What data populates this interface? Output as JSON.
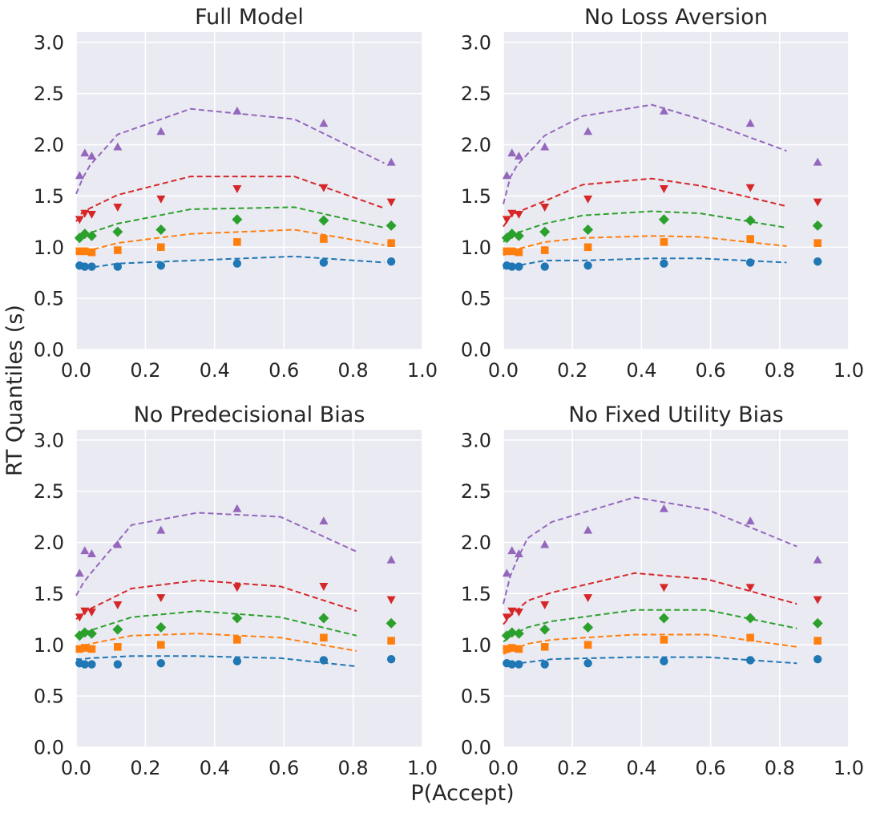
{
  "figure": {
    "ylabel": "RT Quantiles (s)",
    "xlabel": "P(Accept)",
    "colors": {
      "background": "#eaeaf2",
      "grid": "#ffffff",
      "q1": "#1f77b4",
      "q2": "#ff7f0e",
      "q3": "#2ca02c",
      "q4": "#d62728",
      "q5": "#9467bd"
    },
    "markers": [
      "circle",
      "square",
      "diamond",
      "triangle-down",
      "triangle-up"
    ]
  },
  "chart_data": [
    {
      "type": "scatter",
      "title": "Full Model",
      "xlim": [
        0,
        1
      ],
      "ylim": [
        0,
        3.1
      ],
      "xticks": [
        "0.0",
        "0.2",
        "0.4",
        "0.6",
        "0.8",
        "1.0"
      ],
      "yticks": [
        "0.0",
        "0.5",
        "1.0",
        "1.5",
        "2.0",
        "2.5",
        "3.0"
      ],
      "grid": true,
      "observed": {
        "x": [
          0.01,
          0.025,
          0.045,
          0.12,
          0.245,
          0.465,
          0.715,
          0.91
        ],
        "series": [
          [
            0.82,
            0.81,
            0.81,
            0.81,
            0.82,
            0.84,
            0.85,
            0.86
          ],
          [
            0.96,
            0.96,
            0.95,
            0.97,
            1.0,
            1.05,
            1.08,
            1.04
          ],
          [
            1.09,
            1.13,
            1.11,
            1.15,
            1.17,
            1.27,
            1.26,
            1.21
          ],
          [
            1.27,
            1.33,
            1.32,
            1.39,
            1.47,
            1.57,
            1.58,
            1.44
          ],
          [
            1.7,
            1.92,
            1.89,
            1.98,
            2.13,
            2.33,
            2.21,
            1.83
          ]
        ]
      },
      "predicted": {
        "x": [
          0.0,
          0.02,
          0.04,
          0.12,
          0.33,
          0.63,
          0.89
        ],
        "series": [
          [
            0.8,
            0.8,
            0.8,
            0.84,
            0.87,
            0.91,
            0.85
          ],
          [
            0.94,
            0.96,
            0.97,
            1.04,
            1.13,
            1.17,
            1.02
          ],
          [
            1.07,
            1.13,
            1.14,
            1.23,
            1.37,
            1.39,
            1.19
          ],
          [
            1.25,
            1.35,
            1.38,
            1.51,
            1.69,
            1.69,
            1.38
          ],
          [
            1.52,
            1.68,
            1.8,
            2.1,
            2.35,
            2.25,
            1.82
          ]
        ]
      }
    },
    {
      "type": "scatter",
      "title": "No Loss Aversion",
      "xlim": [
        0,
        1
      ],
      "ylim": [
        0,
        3.1
      ],
      "xticks": [
        "0.0",
        "0.2",
        "0.4",
        "0.6",
        "0.8",
        "1.0"
      ],
      "yticks": [
        "0.0",
        "0.5",
        "1.0",
        "1.5",
        "2.0",
        "2.5",
        "3.0"
      ],
      "grid": true,
      "observed": {
        "x": [
          0.01,
          0.025,
          0.045,
          0.12,
          0.245,
          0.465,
          0.715,
          0.91
        ],
        "series": [
          [
            0.82,
            0.81,
            0.81,
            0.81,
            0.82,
            0.84,
            0.85,
            0.86
          ],
          [
            0.96,
            0.96,
            0.95,
            0.97,
            1.0,
            1.05,
            1.08,
            1.04
          ],
          [
            1.09,
            1.13,
            1.11,
            1.15,
            1.17,
            1.27,
            1.26,
            1.21
          ],
          [
            1.27,
            1.33,
            1.32,
            1.39,
            1.47,
            1.57,
            1.58,
            1.44
          ],
          [
            1.7,
            1.92,
            1.89,
            1.98,
            2.13,
            2.33,
            2.21,
            1.83
          ]
        ]
      },
      "predicted": {
        "x": [
          0.0,
          0.02,
          0.04,
          0.12,
          0.23,
          0.43,
          0.57,
          0.82
        ],
        "series": [
          [
            0.79,
            0.81,
            0.82,
            0.87,
            0.87,
            0.89,
            0.89,
            0.85
          ],
          [
            0.92,
            0.95,
            0.98,
            1.05,
            1.09,
            1.11,
            1.1,
            1.01
          ],
          [
            1.05,
            1.12,
            1.14,
            1.23,
            1.31,
            1.35,
            1.33,
            1.19
          ],
          [
            1.2,
            1.3,
            1.34,
            1.45,
            1.61,
            1.67,
            1.6,
            1.4
          ],
          [
            1.42,
            1.68,
            1.8,
            2.09,
            2.28,
            2.39,
            2.25,
            1.94
          ]
        ]
      }
    },
    {
      "type": "scatter",
      "title": "No Predecisional Bias",
      "xlim": [
        0,
        1
      ],
      "ylim": [
        0,
        3.1
      ],
      "xticks": [
        "0.0",
        "0.2",
        "0.4",
        "0.6",
        "0.8",
        "1.0"
      ],
      "yticks": [
        "0.0",
        "0.5",
        "1.0",
        "1.5",
        "2.0",
        "2.5",
        "3.0"
      ],
      "grid": true,
      "observed": {
        "x": [
          0.01,
          0.025,
          0.045,
          0.12,
          0.245,
          0.465,
          0.715,
          0.91
        ],
        "series": [
          [
            0.82,
            0.81,
            0.81,
            0.81,
            0.82,
            0.84,
            0.85,
            0.86
          ],
          [
            0.96,
            0.97,
            0.96,
            0.98,
            1.0,
            1.05,
            1.07,
            1.04
          ],
          [
            1.09,
            1.12,
            1.11,
            1.15,
            1.17,
            1.26,
            1.26,
            1.21
          ],
          [
            1.27,
            1.33,
            1.32,
            1.39,
            1.46,
            1.56,
            1.57,
            1.44
          ],
          [
            1.7,
            1.92,
            1.89,
            1.98,
            2.12,
            2.33,
            2.21,
            1.83
          ]
        ]
      },
      "predicted": {
        "x": [
          0.0,
          0.02,
          0.04,
          0.16,
          0.35,
          0.59,
          0.81
        ],
        "series": [
          [
            0.86,
            0.86,
            0.87,
            0.89,
            0.89,
            0.87,
            0.79
          ],
          [
            0.96,
            0.98,
            1.01,
            1.09,
            1.11,
            1.07,
            0.94
          ],
          [
            1.08,
            1.11,
            1.14,
            1.27,
            1.33,
            1.27,
            1.09
          ],
          [
            1.25,
            1.31,
            1.35,
            1.55,
            1.63,
            1.57,
            1.33
          ],
          [
            1.48,
            1.6,
            1.69,
            2.17,
            2.29,
            2.25,
            1.91
          ]
        ]
      }
    },
    {
      "type": "scatter",
      "title": "No Fixed Utility Bias",
      "xlim": [
        0,
        1
      ],
      "ylim": [
        0,
        3.1
      ],
      "xticks": [
        "0.0",
        "0.2",
        "0.4",
        "0.6",
        "0.8",
        "1.0"
      ],
      "yticks": [
        "0.0",
        "0.5",
        "1.0",
        "1.5",
        "2.0",
        "2.5",
        "3.0"
      ],
      "grid": true,
      "observed": {
        "x": [
          0.01,
          0.025,
          0.045,
          0.12,
          0.245,
          0.465,
          0.715,
          0.91
        ],
        "series": [
          [
            0.82,
            0.81,
            0.81,
            0.81,
            0.82,
            0.84,
            0.85,
            0.86
          ],
          [
            0.96,
            0.97,
            0.96,
            0.98,
            1.0,
            1.05,
            1.07,
            1.04
          ],
          [
            1.09,
            1.12,
            1.11,
            1.15,
            1.17,
            1.26,
            1.26,
            1.21
          ],
          [
            1.27,
            1.33,
            1.32,
            1.39,
            1.46,
            1.56,
            1.56,
            1.44
          ],
          [
            1.7,
            1.92,
            1.89,
            1.98,
            2.12,
            2.33,
            2.21,
            1.83
          ]
        ]
      },
      "predicted": {
        "x": [
          0.0,
          0.02,
          0.04,
          0.07,
          0.14,
          0.38,
          0.59,
          0.85
        ],
        "series": [
          [
            0.81,
            0.81,
            0.82,
            0.83,
            0.86,
            0.88,
            0.88,
            0.82
          ],
          [
            0.91,
            0.94,
            0.97,
            1.01,
            1.05,
            1.1,
            1.1,
            0.98
          ],
          [
            1.03,
            1.08,
            1.12,
            1.17,
            1.23,
            1.34,
            1.34,
            1.16
          ],
          [
            1.2,
            1.28,
            1.34,
            1.43,
            1.51,
            1.7,
            1.64,
            1.4
          ],
          [
            1.4,
            1.67,
            1.83,
            2.04,
            2.2,
            2.44,
            2.32,
            1.96
          ]
        ]
      }
    }
  ]
}
